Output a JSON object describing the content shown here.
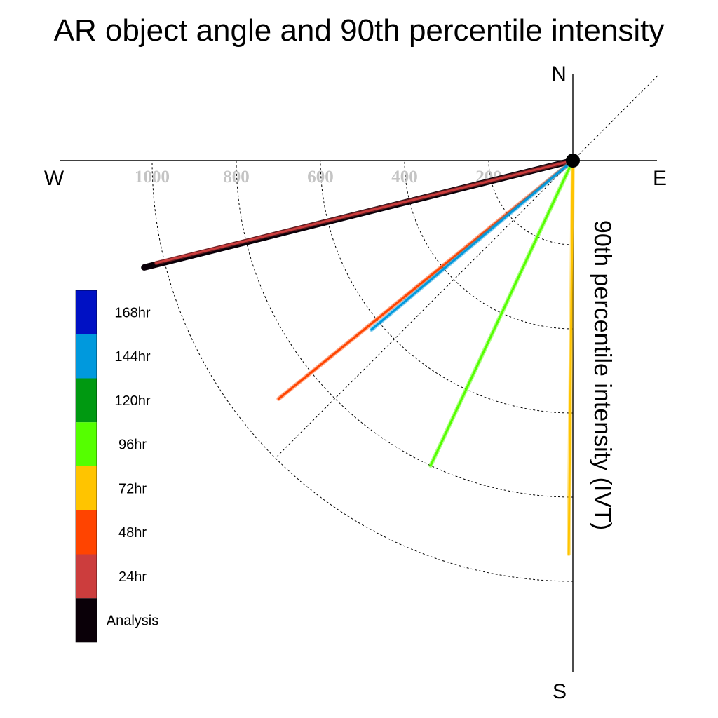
{
  "chart_data": {
    "type": "polar-line",
    "title": "AR object angle and 90th percentile intensity",
    "ylabel": "90th percentile intensity (IVT)",
    "compass": {
      "n": "N",
      "s": "S",
      "e": "E",
      "w": "W"
    },
    "rlim": [
      0,
      1000
    ],
    "rings": [
      200,
      400,
      600,
      800,
      1000
    ],
    "ring_labels": [
      "200",
      "400",
      "600",
      "800",
      "1000"
    ],
    "grid": true,
    "legend_placement": "left",
    "series": [
      {
        "name": "Analysis",
        "angle_deg": 166.0,
        "value": 1050,
        "color": "#0a0008"
      },
      {
        "name": "24hr",
        "angle_deg": 166.2,
        "value": 1020,
        "color": "#cc3d3d"
      },
      {
        "name": "48hr",
        "angle_deg": 141.0,
        "value": 900,
        "color": "#ff4400"
      },
      {
        "name": "72hr",
        "angle_deg": 90.6,
        "value": 935,
        "color": "#ffc400"
      },
      {
        "name": "96hr",
        "angle_deg": 115.0,
        "value": 800,
        "color": "#55ff00"
      },
      {
        "name": "144hr",
        "angle_deg": 140.0,
        "value": 625,
        "color": "#0099dd"
      }
    ],
    "legend": [
      {
        "name": "168hr",
        "color": "#0011c4"
      },
      {
        "name": "144hr",
        "color": "#0099dd"
      },
      {
        "name": "120hr",
        "color": "#009911"
      },
      {
        "name": "96hr",
        "color": "#55ff00"
      },
      {
        "name": "72hr",
        "color": "#ffc400"
      },
      {
        "name": "48hr",
        "color": "#ff4400"
      },
      {
        "name": "24hr",
        "color": "#cc3d3d"
      },
      {
        "name": "Analysis",
        "color": "#0a0008"
      }
    ]
  }
}
